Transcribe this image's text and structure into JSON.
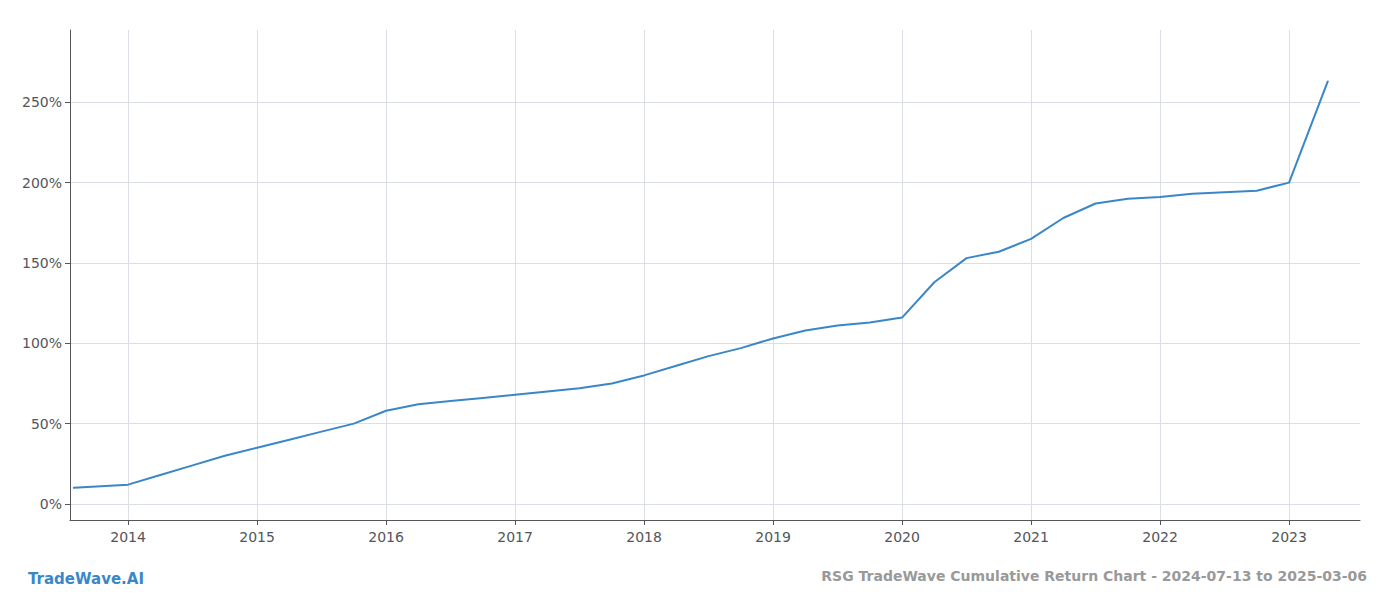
{
  "chart_data": {
    "type": "line",
    "title": "RSG TradeWave Cumulative Return Chart - 2024-07-13 to 2025-03-06",
    "annotations": [
      "TradeWave.AI"
    ],
    "color": "#3a87c8",
    "x": [
      2013.58,
      2014.0,
      2014.25,
      2014.5,
      2014.75,
      2015.0,
      2015.25,
      2015.5,
      2015.75,
      2016.0,
      2016.25,
      2016.5,
      2016.75,
      2017.0,
      2017.25,
      2017.5,
      2017.75,
      2018.0,
      2018.25,
      2018.5,
      2018.75,
      2019.0,
      2019.25,
      2019.5,
      2019.75,
      2020.0,
      2020.25,
      2020.5,
      2020.75,
      2021.0,
      2021.25,
      2021.5,
      2021.75,
      2022.0,
      2022.25,
      2022.5,
      2022.75,
      2023.0,
      2023.3
    ],
    "values": [
      10,
      12,
      18,
      24,
      30,
      35,
      40,
      45,
      50,
      58,
      62,
      64,
      66,
      68,
      70,
      72,
      75,
      80,
      86,
      92,
      97,
      103,
      108,
      111,
      113,
      116,
      138,
      153,
      157,
      165,
      178,
      187,
      190,
      191,
      193,
      194,
      195,
      200,
      263
    ],
    "xlim": [
      2013.55,
      2023.55
    ],
    "xticks": [
      2014,
      2015,
      2016,
      2017,
      2018,
      2019,
      2020,
      2021,
      2022,
      2023
    ],
    "ylim": [
      -10,
      295
    ],
    "yticks": [
      {
        "value": 0,
        "label": "0%"
      },
      {
        "value": 50,
        "label": "50%"
      },
      {
        "value": 100,
        "label": "100%"
      },
      {
        "value": 150,
        "label": "150%"
      },
      {
        "value": 200,
        "label": "200%"
      },
      {
        "value": 250,
        "label": "250%"
      }
    ],
    "grid": true
  }
}
